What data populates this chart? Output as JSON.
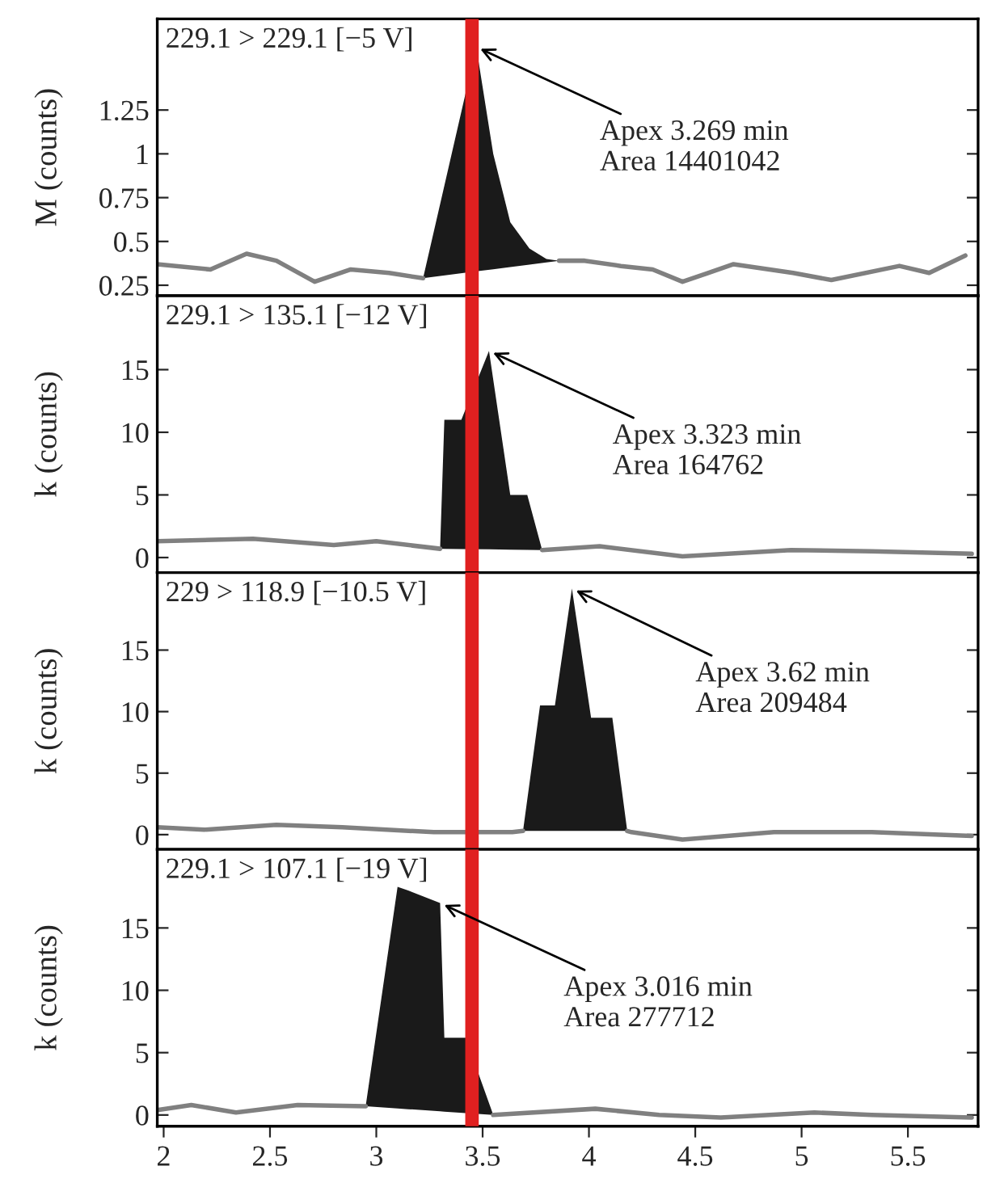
{
  "chart_data": [
    {
      "type": "line",
      "title": "229.1 > 229.1 [−5 V]",
      "ylabel": "M (counts)",
      "xlim": [
        1.97,
        5.83
      ],
      "xticks": [
        2,
        2.5,
        3,
        3.5,
        4,
        4.5,
        5,
        5.5
      ],
      "ylim": [
        0.19,
        1.77
      ],
      "yticks": [
        0.25,
        0.5,
        0.75,
        1,
        1.25
      ],
      "tick_labels": "y",
      "grid": false,
      "series": [
        {
          "color": "#808080",
          "x": [
            1.97,
            2.22,
            2.39,
            2.53,
            2.71,
            2.88,
            3.06,
            3.22,
            null,
            3.86,
            3.98,
            4.15,
            4.3,
            4.44,
            4.56,
            4.68,
            4.96,
            5.14,
            5.46,
            5.6,
            5.77
          ],
          "values": [
            0.37,
            0.34,
            0.43,
            0.39,
            0.27,
            0.34,
            0.32,
            0.29,
            null,
            0.39,
            0.39,
            0.36,
            0.34,
            0.27,
            0.32,
            0.37,
            0.32,
            0.28,
            0.36,
            0.32,
            0.42
          ]
        },
        {
          "type": "area",
          "color": "#1a1a1a",
          "x": [
            3.22,
            3.47,
            3.55,
            3.63,
            3.72,
            3.8,
            3.86
          ],
          "values": [
            0.29,
            1.61,
            1.0,
            0.61,
            0.46,
            0.4,
            0.39
          ]
        }
      ],
      "ref_lines": [
        {
          "axis": "x",
          "value": 3.45,
          "color": "#e02020"
        }
      ],
      "annotations": [
        {
          "text": "Apex 3.269 min\nArea 14401042",
          "x": 3.47,
          "y": 1.61
        }
      ]
    },
    {
      "type": "line",
      "title": "229.1 > 135.1 [−12 V]",
      "ylabel": "k (counts)",
      "xlim": [
        1.97,
        5.83
      ],
      "xticks": [
        2,
        2.5,
        3,
        3.5,
        4,
        4.5,
        5,
        5.5
      ],
      "ylim": [
        -1.2,
        20.9
      ],
      "yticks": [
        0,
        5,
        10,
        15
      ],
      "tick_labels": "y",
      "grid": false,
      "series": [
        {
          "color": "#808080",
          "x": [
            1.97,
            2.42,
            2.8,
            3.0,
            3.3,
            null,
            3.78,
            4.05,
            4.44,
            4.95,
            5.33,
            5.8
          ],
          "values": [
            1.3,
            1.5,
            1.0,
            1.3,
            0.7,
            null,
            0.6,
            0.9,
            0.1,
            0.6,
            0.5,
            0.3
          ]
        },
        {
          "type": "area",
          "color": "#1a1a1a",
          "x": [
            3.3,
            3.32,
            3.4,
            3.53,
            3.63,
            3.71,
            3.78
          ],
          "values": [
            0.7,
            11,
            11,
            16.5,
            5,
            5,
            0.6
          ]
        }
      ],
      "ref_lines": [
        {
          "axis": "x",
          "value": 3.45,
          "color": "#e02020"
        }
      ],
      "annotations": [
        {
          "text": "Apex 3.323 min\nArea 164762",
          "x": 3.53,
          "y": 16.5
        }
      ]
    },
    {
      "type": "line",
      "title": "229 > 118.9 [−10.5 V]",
      "ylabel": "k (counts)",
      "xlim": [
        1.97,
        5.83
      ],
      "xticks": [
        2,
        2.5,
        3,
        3.5,
        4,
        4.5,
        5,
        5.5
      ],
      "ylim": [
        -1.2,
        21.3
      ],
      "yticks": [
        0,
        5,
        10,
        15
      ],
      "tick_labels": "y",
      "grid": false,
      "series": [
        {
          "color": "#808080",
          "x": [
            1.97,
            2.19,
            2.53,
            2.84,
            3.27,
            3.64,
            3.69,
            null,
            4.18,
            4.2,
            4.44,
            4.87,
            5.33,
            5.8
          ],
          "values": [
            0.6,
            0.4,
            0.8,
            0.6,
            0.2,
            0.2,
            0.3,
            null,
            0.3,
            0.2,
            -0.4,
            0.2,
            0.2,
            -0.1
          ]
        },
        {
          "type": "area",
          "color": "#1a1a1a",
          "x": [
            3.69,
            3.77,
            3.84,
            3.92,
            4.01,
            4.11,
            4.18
          ],
          "values": [
            0.3,
            10.5,
            10.5,
            20,
            9.5,
            9.5,
            0.3
          ]
        }
      ],
      "ref_lines": [
        {
          "axis": "x",
          "value": 3.45,
          "color": "#e02020"
        }
      ],
      "annotations": [
        {
          "text": "Apex 3.62 min\nArea 209484",
          "x": 3.92,
          "y": 20
        }
      ]
    },
    {
      "type": "line",
      "title": "229.1 > 107.1 [−19 V]",
      "ylabel": "k (counts)",
      "xlim": [
        1.97,
        5.83
      ],
      "xticks": [
        2,
        2.5,
        3,
        3.5,
        4,
        4.5,
        5,
        5.5
      ],
      "ylim": [
        -0.9,
        21.3
      ],
      "yticks": [
        0,
        5,
        10,
        15
      ],
      "grid": false,
      "series": [
        {
          "color": "#808080",
          "x": [
            1.97,
            2.13,
            2.34,
            2.63,
            2.95,
            null,
            3.55,
            4.03,
            4.33,
            4.62,
            5.06,
            5.33,
            5.8
          ],
          "values": [
            0.4,
            0.8,
            0.2,
            0.8,
            0.7,
            null,
            0,
            0.5,
            0,
            -0.2,
            0.2,
            0,
            -0.2
          ]
        },
        {
          "type": "area",
          "color": "#1a1a1a",
          "x": [
            2.95,
            3.1,
            3.15,
            3.3,
            3.32,
            3.42,
            3.55
          ],
          "values": [
            0.7,
            18.3,
            18,
            17,
            6.2,
            6.2,
            0
          ]
        }
      ],
      "ref_lines": [
        {
          "axis": "x",
          "value": 3.45,
          "color": "#e02020"
        }
      ],
      "annotations": [
        {
          "text": "Apex 3.016 min\nArea 277712",
          "x": 3.3,
          "y": 17
        }
      ]
    }
  ]
}
